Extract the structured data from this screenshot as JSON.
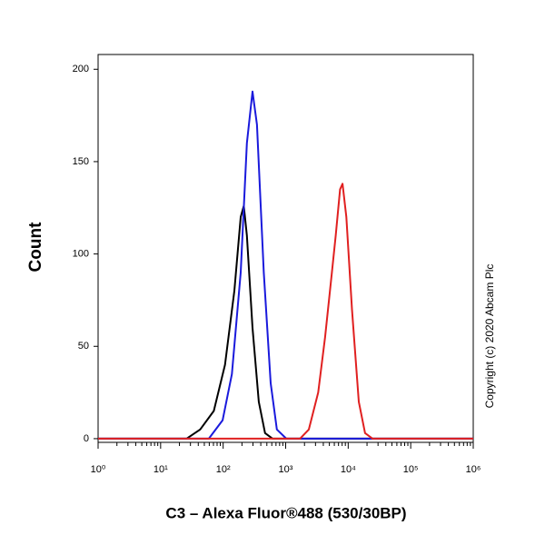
{
  "chart_data": {
    "type": "line",
    "y_label": "Count",
    "x_label": "C3 – Alexa Fluor®488 (530/30BP)",
    "annotation": "Copyright (c) 2020 Abcam Plc",
    "xscale": "log",
    "xlim": [
      1,
      1000000
    ],
    "xticks": [
      {
        "value": 1,
        "label": "10⁰"
      },
      {
        "value": 10,
        "label": "10¹"
      },
      {
        "value": 100,
        "label": "10²"
      },
      {
        "value": 1000,
        "label": "10³"
      },
      {
        "value": 10000,
        "label": "10⁴"
      },
      {
        "value": 100000,
        "label": "10⁵"
      },
      {
        "value": 1000000,
        "label": "10⁶"
      }
    ],
    "ylim": [
      -2,
      208
    ],
    "yticks": [
      0,
      50,
      100,
      150,
      200
    ],
    "series": [
      {
        "color": "#000000",
        "x": [
          1,
          26,
          43,
          71,
          107,
          151,
          191,
          214,
          240,
          295,
          372,
          468,
          617,
          1000000
        ],
        "values": [
          0,
          0,
          5,
          15,
          40,
          80,
          120,
          126,
          110,
          60,
          20,
          3,
          0,
          0
        ]
      },
      {
        "color": "#1a1adc",
        "x": [
          1,
          59,
          98,
          138,
          191,
          240,
          295,
          347,
          447,
          575,
          724,
          1023,
          1000000
        ],
        "values": [
          0,
          0,
          10,
          35,
          90,
          160,
          188,
          170,
          90,
          30,
          5,
          0,
          0
        ]
      },
      {
        "color": "#e02020",
        "x": [
          1,
          1698,
          2344,
          3311,
          4266,
          5495,
          6310,
          7413,
          8128,
          9333,
          11482,
          14791,
          18621,
          24547,
          1000000
        ],
        "values": [
          0,
          0,
          5,
          25,
          55,
          90,
          110,
          135,
          138,
          120,
          70,
          20,
          3,
          0,
          0
        ]
      }
    ]
  }
}
